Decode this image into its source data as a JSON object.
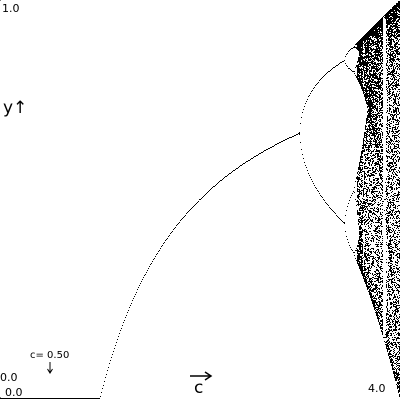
{
  "chart_data": {
    "type": "bifurcation",
    "xlim": [
      0,
      4
    ],
    "ylim": [
      0,
      1
    ],
    "xticks": [
      {
        "value": 0,
        "label": "0.0"
      },
      {
        "value": 4,
        "label": "4.0"
      }
    ],
    "yticks": [
      {
        "value": 0,
        "label": "0.0"
      },
      {
        "value": 1,
        "label": "1.0"
      }
    ],
    "x_label": "c",
    "y_label": "y↑",
    "marker": {
      "value": 0.5,
      "label": "c= 0.50"
    },
    "color": "#000000"
  }
}
